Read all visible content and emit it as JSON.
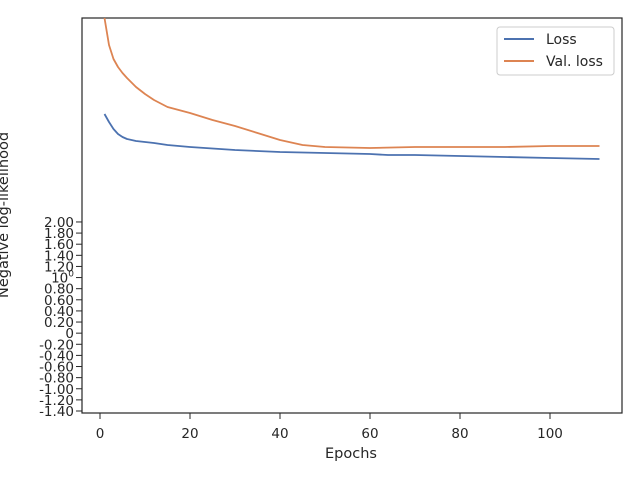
{
  "chart_data": {
    "type": "line",
    "title": "",
    "xlabel": "Epochs",
    "ylabel": "Negative log-likelihood",
    "xlim": [
      -4,
      116
    ],
    "x_ticks": [
      0,
      20,
      40,
      60,
      80,
      100
    ],
    "y_ticks": [
      "-1.40",
      "-1.20",
      "-1.00",
      "-0.80",
      "-0.60",
      "-0.40",
      "-0.20",
      "0",
      "0.20",
      "0.40",
      "0.60",
      "0.80",
      "10^0",
      "1.20",
      "1.40",
      "1.60",
      "1.80",
      "2.00"
    ],
    "legend_position": "top-right",
    "grid": false,
    "series": [
      {
        "name": "Loss",
        "color": "#4c72b0",
        "x": [
          1,
          2,
          3,
          4,
          5,
          6,
          8,
          10,
          12,
          15,
          20,
          30,
          40,
          50,
          60,
          64,
          70,
          80,
          90,
          100,
          111
        ],
        "y": [
          114,
          122,
          129,
          134,
          137,
          139,
          141,
          142,
          143,
          145,
          147,
          150,
          152,
          153,
          154,
          155,
          155,
          156,
          157,
          158,
          159
        ]
      },
      {
        "name": "Val. loss",
        "color": "#dd8452",
        "x": [
          1,
          2,
          3,
          4,
          5,
          6,
          8,
          10,
          12,
          15,
          20,
          25,
          30,
          35,
          40,
          45,
          50,
          60,
          70,
          80,
          90,
          100,
          111
        ],
        "y": [
          18,
          45,
          59,
          67,
          73,
          78,
          87,
          94,
          100,
          107,
          113,
          120,
          126,
          133,
          140,
          145,
          147,
          148,
          147,
          147,
          147,
          146,
          146
        ]
      }
    ]
  }
}
